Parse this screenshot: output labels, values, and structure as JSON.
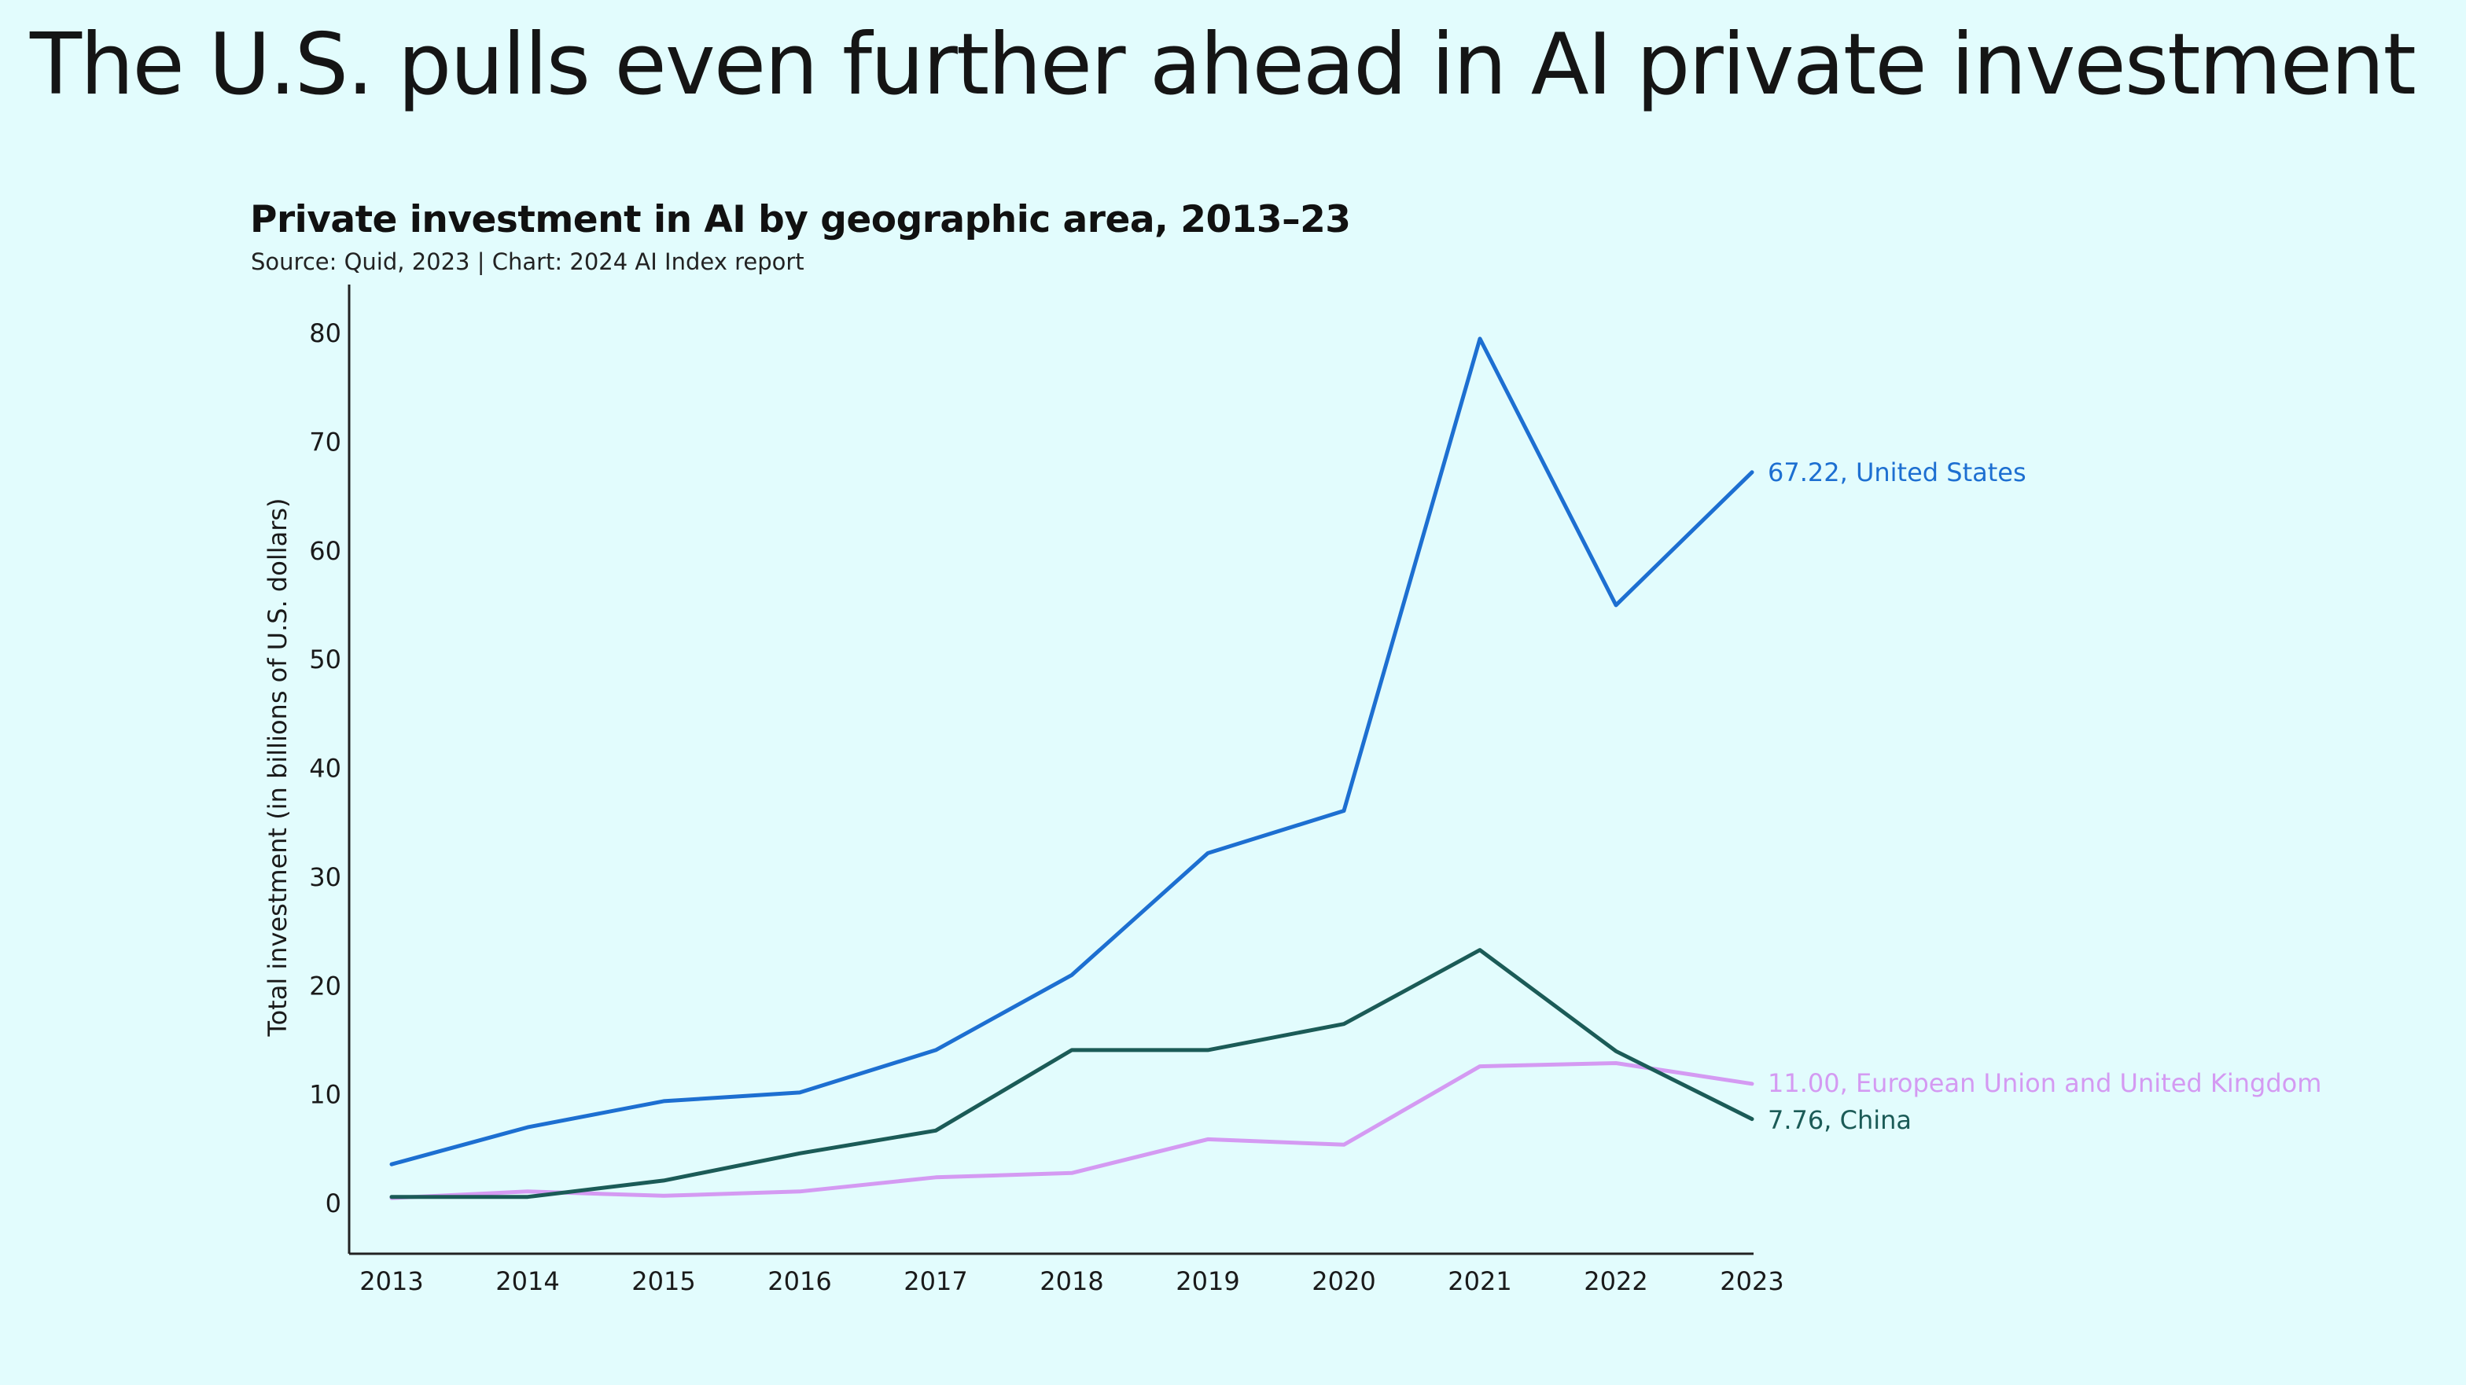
{
  "slide": {
    "title": "The U.S. pulls even further ahead in AI private investment"
  },
  "chart_data": {
    "type": "line",
    "title": "Private investment in AI by geographic area, 2013–23",
    "subtitle": "Source: Quid, 2023 | Chart: 2024 AI Index report",
    "xlabel": "",
    "ylabel": "Total investment (in billions of U.S. dollars)",
    "x": [
      "2013",
      "2014",
      "2015",
      "2016",
      "2017",
      "2018",
      "2019",
      "2020",
      "2021",
      "2022",
      "2023"
    ],
    "ylim": [
      0,
      80
    ],
    "yticks": [
      "0",
      "10",
      "20",
      "30",
      "40",
      "50",
      "60",
      "70",
      "80"
    ],
    "grid": false,
    "legend": "end-of-line labels",
    "series": [
      {
        "name": "United States",
        "end_label": "67.22, United States",
        "color": "#1d6fd1",
        "values": [
          3.6,
          7.0,
          9.4,
          10.2,
          14.1,
          21.0,
          32.2,
          36.1,
          79.5,
          55.0,
          67.22
        ]
      },
      {
        "name": "European Union and United Kingdom",
        "end_label": "11.00, European Union and United Kingdom",
        "color": "#d49af2",
        "values": [
          0.5,
          1.1,
          0.7,
          1.1,
          2.4,
          2.8,
          5.9,
          5.4,
          12.6,
          12.9,
          11.0
        ]
      },
      {
        "name": "China",
        "end_label": "7.76, China",
        "color": "#1b5b57",
        "values": [
          0.6,
          0.6,
          2.1,
          4.6,
          6.7,
          14.1,
          14.1,
          16.5,
          23.3,
          14.0,
          7.76
        ]
      }
    ]
  }
}
